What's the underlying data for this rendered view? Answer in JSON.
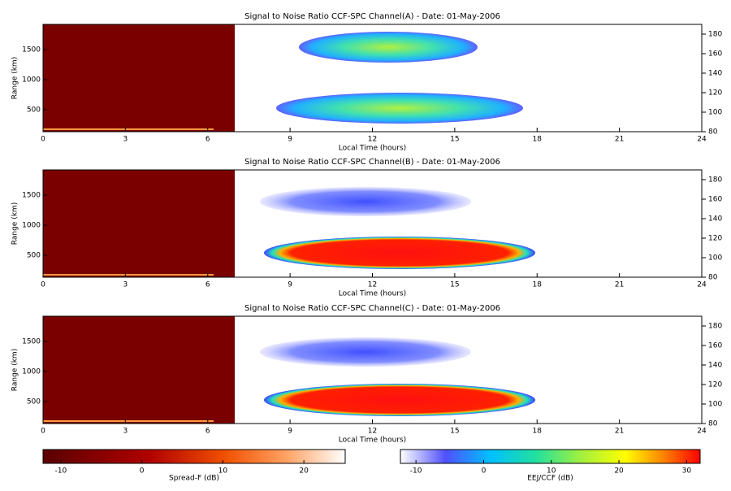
{
  "chart_data": [
    {
      "type": "heatmap",
      "title": "Signal to Noise Ratio CCF-SPC Channel(A) - Date: 01-May-2006",
      "xlabel": "Local Time (hours)",
      "ylabel": "Range (km)",
      "xlim": [
        0,
        24
      ],
      "xticks": [
        0,
        3,
        6,
        9,
        12,
        15,
        18,
        21,
        24
      ],
      "ylim": [
        135,
        1920
      ],
      "yticks": [
        500,
        1000,
        1500
      ],
      "y2lim": [
        80,
        190
      ],
      "y2ticks": [
        80,
        100,
        120,
        140,
        160,
        180
      ]
    },
    {
      "type": "heatmap",
      "title": "Signal to Noise Ratio CCF-SPC Channel(B) - Date: 01-May-2006",
      "xlabel": "Local Time (hours)",
      "ylabel": "Range (km)",
      "xlim": [
        0,
        24
      ],
      "xticks": [
        0,
        3,
        6,
        9,
        12,
        15,
        18,
        21,
        24
      ],
      "ylim": [
        135,
        1920
      ],
      "yticks": [
        500,
        1000,
        1500
      ],
      "y2lim": [
        80,
        190
      ],
      "y2ticks": [
        80,
        100,
        120,
        140,
        160,
        180
      ]
    },
    {
      "type": "heatmap",
      "title": "Signal to Noise Ratio CCF-SPC Channel(C) - Date: 01-May-2006",
      "xlabel": "Local Time (hours)",
      "ylabel": "Range (km)",
      "xlim": [
        0,
        24
      ],
      "xticks": [
        0,
        3,
        6,
        9,
        12,
        15,
        18,
        21,
        24
      ],
      "ylim": [
        135,
        1920
      ],
      "yticks": [
        500,
        1000,
        1500
      ],
      "y2lim": [
        80,
        190
      ],
      "y2ticks": [
        80,
        100,
        120,
        140,
        160,
        180
      ]
    },
    {
      "type": "colorbar",
      "xlabel": "Spread-F (dB)",
      "xlim": [
        -12.2,
        25.1
      ],
      "xticks": [
        -10,
        0,
        10,
        20
      ],
      "colormap": "heat"
    },
    {
      "type": "colorbar",
      "xlabel": "EEJ/CCF (dB)",
      "xlim": [
        -12.3,
        32
      ],
      "xticks": [
        -10,
        0,
        10,
        20,
        30
      ],
      "colormap": "rainbow"
    }
  ]
}
